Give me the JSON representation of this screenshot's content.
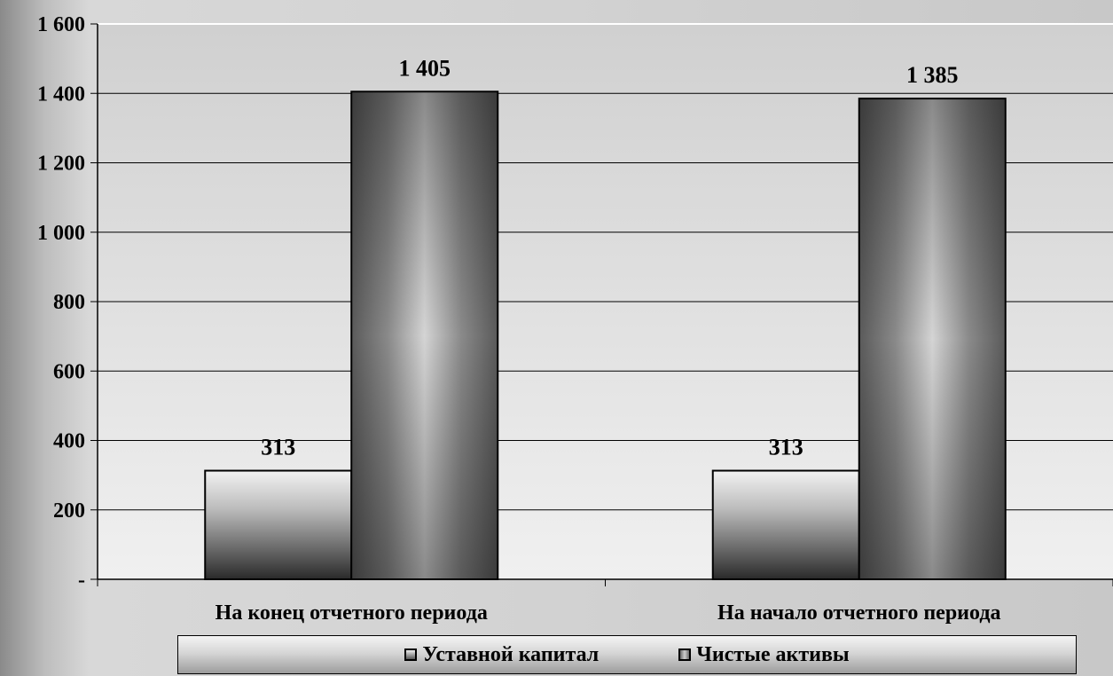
{
  "chart_data": {
    "type": "bar",
    "categories": [
      "На конец отчетного периода",
      "На начало отчетного периода"
    ],
    "series": [
      {
        "name": "Уставной капитал",
        "values": [
          313,
          313
        ],
        "value_labels": [
          "313",
          "313"
        ]
      },
      {
        "name": "Чистые активы",
        "values": [
          1405,
          1385
        ],
        "value_labels": [
          "1 405",
          "1 385"
        ]
      }
    ],
    "ylim": [
      0,
      1600
    ],
    "yticks": [
      {
        "value": 0,
        "label": "-"
      },
      {
        "value": 200,
        "label": "200"
      },
      {
        "value": 400,
        "label": "400"
      },
      {
        "value": 600,
        "label": "600"
      },
      {
        "value": 800,
        "label": "800"
      },
      {
        "value": 1000,
        "label": "1 000"
      },
      {
        "value": 1200,
        "label": "1 200"
      },
      {
        "value": 1400,
        "label": "1 400"
      },
      {
        "value": 1600,
        "label": "1 600"
      }
    ],
    "grid": true,
    "legend_position": "bottom",
    "colors": {
      "plot_background": "#dcdcdc",
      "gridline": "#000000",
      "series_1_fill": "#bbbbbb",
      "series_2_fill": "#7c7c7c",
      "bar_border": "#000000"
    }
  }
}
